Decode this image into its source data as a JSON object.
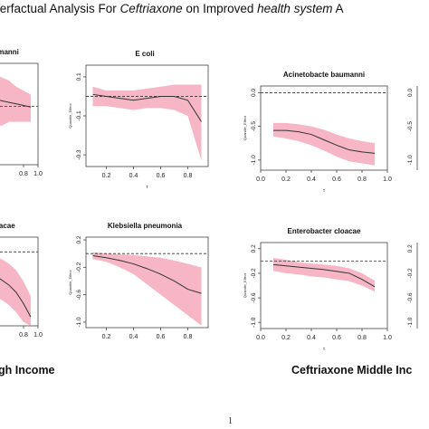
{
  "page": {
    "title_lead": "terfactual Analysis For ",
    "title_drug": "Ceftriaxone",
    "title_mid": " on Improved ",
    "title_system": "health system",
    "title_tail": " A",
    "left_group_label": "gh Income",
    "right_group_label": "Ceftriaxone Middle Inc",
    "page_number": "1"
  },
  "colors": {
    "band": "#f7b6c6",
    "line": "#333333",
    "ref": "#333333"
  },
  "chart_data": [
    {
      "type": "line",
      "title": "baumanni",
      "xlabel": "",
      "ylabel": "",
      "xticks": [
        "0.8",
        "1.0"
      ],
      "yticks": [],
      "x": [
        0.1,
        0.2,
        0.3,
        0.4,
        0.5,
        0.6,
        0.7,
        0.8,
        0.9
      ],
      "ylim": [
        -1.0,
        0.3
      ],
      "xlim": [
        0.1,
        1.0
      ],
      "ref": -0.25,
      "series": [
        {
          "values": [
            -0.1,
            -0.12,
            -0.14,
            -0.16,
            -0.18,
            -0.2,
            -0.22,
            -0.24,
            -0.26
          ]
        }
      ],
      "band_lower": [
        -0.55,
        -0.55,
        -0.55,
        -0.5,
        -0.5,
        -0.45,
        -0.45,
        -0.45,
        -0.45
      ],
      "band_upper": [
        0.2,
        0.2,
        0.2,
        0.15,
        0.12,
        0.08,
        0.0,
        -0.05,
        -0.1
      ]
    },
    {
      "type": "line",
      "title": "E coli",
      "xlabel": "τ",
      "ylabel": "Quantile_Effect",
      "xticks": [
        "0.2",
        "0.4",
        "0.6",
        "0.8"
      ],
      "yticks": [
        "0.1",
        "-0.1",
        "-0.3"
      ],
      "ytick_values": [
        0.1,
        -0.1,
        -0.3
      ],
      "x": [
        0.1,
        0.2,
        0.3,
        0.4,
        0.5,
        0.6,
        0.7,
        0.8,
        0.9
      ],
      "ylim": [
        -0.36,
        0.16
      ],
      "xlim": [
        0.05,
        0.95
      ],
      "ref": 0.0,
      "series": [
        {
          "values": [
            0.01,
            0.0,
            -0.01,
            -0.02,
            -0.01,
            0.0,
            0.0,
            -0.02,
            -0.13
          ]
        }
      ],
      "band_lower": [
        -0.05,
        -0.05,
        -0.06,
        -0.07,
        -0.06,
        -0.06,
        -0.07,
        -0.1,
        -0.33
      ],
      "band_upper": [
        0.05,
        0.03,
        0.03,
        0.03,
        0.04,
        0.05,
        0.06,
        0.06,
        0.06
      ]
    },
    {
      "type": "line",
      "title": "Acinetobacte baumanni",
      "xlabel": "τ",
      "ylabel": "Quantile_Effect",
      "xticks": [
        "0.0",
        "0.2",
        "0.4",
        "0.6",
        "0.8",
        "1.0"
      ],
      "yticks": [
        "0.0",
        "-0.5",
        "-1.0"
      ],
      "ytick_values": [
        0.0,
        -0.5,
        -1.0
      ],
      "x": [
        0.1,
        0.2,
        0.3,
        0.4,
        0.5,
        0.6,
        0.7,
        0.8,
        0.9
      ],
      "ylim": [
        -1.15,
        0.1
      ],
      "xlim": [
        0.0,
        1.0
      ],
      "ref": 0.0,
      "series": [
        {
          "values": [
            -0.56,
            -0.56,
            -0.58,
            -0.62,
            -0.7,
            -0.78,
            -0.85,
            -0.88,
            -0.9
          ]
        }
      ],
      "band_lower": [
        -0.65,
        -0.68,
        -0.72,
        -0.78,
        -0.86,
        -0.95,
        -1.02,
        -1.05,
        -1.08
      ],
      "band_upper": [
        -0.45,
        -0.45,
        -0.47,
        -0.5,
        -0.55,
        -0.62,
        -0.68,
        -0.72,
        -0.75
      ]
    },
    {
      "type": "line",
      "title": "cloacae",
      "xlabel": "",
      "ylabel": "",
      "xticks": [
        "0.8",
        "1.0"
      ],
      "yticks": [],
      "x": [
        0.1,
        0.2,
        0.3,
        0.4,
        0.5,
        0.6,
        0.7,
        0.8,
        0.9
      ],
      "ylim": [
        -1.0,
        0.2
      ],
      "xlim": [
        0.1,
        1.0
      ],
      "ref": 0.0,
      "series": [
        {
          "values": [
            -0.2,
            -0.24,
            -0.28,
            -0.32,
            -0.38,
            -0.45,
            -0.55,
            -0.7,
            -0.88
          ]
        }
      ],
      "band_lower": [
        -0.45,
        -0.5,
        -0.55,
        -0.6,
        -0.65,
        -0.72,
        -0.82,
        -0.95,
        -1.0
      ],
      "band_upper": [
        0.1,
        0.05,
        0.0,
        -0.05,
        -0.1,
        -0.16,
        -0.25,
        -0.4,
        -0.6
      ]
    },
    {
      "type": "line",
      "title": "Klebsiella pneumonia",
      "xlabel": "",
      "ylabel": "Quantile_Effect",
      "xticks": [
        "0.2",
        "0.4",
        "0.6",
        "0.8"
      ],
      "yticks": [
        "0.2",
        "-0.2",
        "-0.6",
        "-1.0"
      ],
      "ytick_values": [
        0.2,
        -0.2,
        -0.6,
        -1.0
      ],
      "x": [
        0.1,
        0.2,
        0.3,
        0.4,
        0.5,
        0.6,
        0.7,
        0.8,
        0.9
      ],
      "ylim": [
        -1.08,
        0.24
      ],
      "xlim": [
        0.05,
        0.95
      ],
      "ref": 0.0,
      "series": [
        {
          "values": [
            -0.03,
            -0.06,
            -0.1,
            -0.15,
            -0.22,
            -0.3,
            -0.4,
            -0.52,
            -0.58
          ]
        }
      ],
      "band_lower": [
        -0.08,
        -0.12,
        -0.2,
        -0.3,
        -0.45,
        -0.6,
        -0.75,
        -0.9,
        -1.05
      ],
      "band_upper": [
        0.02,
        0.0,
        -0.01,
        -0.02,
        -0.04,
        -0.06,
        -0.1,
        -0.15,
        -0.2
      ]
    },
    {
      "type": "line",
      "title": "Enterobacter cloacae",
      "xlabel": "τ",
      "ylabel": "Quantile_Effect",
      "xticks": [
        "0.0",
        "0.2",
        "0.4",
        "0.6",
        "0.8",
        "1.0"
      ],
      "yticks": [
        "0.2",
        "-0.2",
        "-0.6",
        "-1.0"
      ],
      "ytick_values": [
        0.2,
        -0.2,
        -0.6,
        -1.0
      ],
      "x": [
        0.1,
        0.2,
        0.3,
        0.4,
        0.5,
        0.6,
        0.7,
        0.8,
        0.9
      ],
      "ylim": [
        -1.1,
        0.3
      ],
      "xlim": [
        0.0,
        1.0
      ],
      "ref": 0.0,
      "series": [
        {
          "values": [
            -0.06,
            -0.08,
            -0.1,
            -0.12,
            -0.14,
            -0.17,
            -0.2,
            -0.3,
            -0.42
          ]
        }
      ],
      "band_lower": [
        -0.16,
        -0.2,
        -0.22,
        -0.25,
        -0.27,
        -0.3,
        -0.33,
        -0.4,
        -0.5
      ],
      "band_upper": [
        0.05,
        0.02,
        -0.02,
        -0.04,
        -0.06,
        -0.08,
        -0.12,
        -0.2,
        -0.32
      ]
    }
  ]
}
